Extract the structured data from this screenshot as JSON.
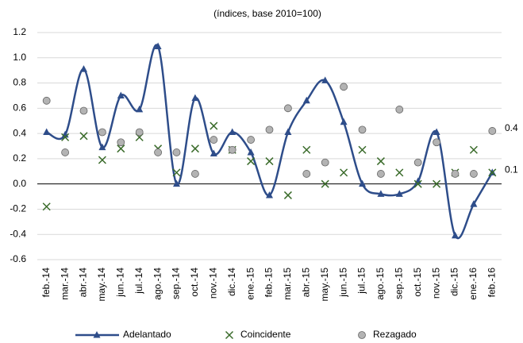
{
  "chart_data": {
    "type": "line",
    "title": "(índices, base 2010=100)",
    "categories": [
      "feb.-14",
      "mar.-14",
      "abr.-14",
      "may.-14",
      "jun.-14",
      "jul.-14",
      "ago.-14",
      "sep.-14",
      "oct.-14",
      "nov.-14",
      "dic.-14",
      "ene.-15",
      "feb.-15",
      "mar.-15",
      "abr.-15",
      "may.-15",
      "jun.-15",
      "jul.-15",
      "ago.-15",
      "sep.-15",
      "oct.-15",
      "nov.-15",
      "dic.-15",
      "ene.-16",
      "feb.-16"
    ],
    "series": [
      {
        "name": "Adelantado",
        "color": "#2e4d8a",
        "marker": "triangle",
        "values": [
          0.41,
          0.39,
          0.91,
          0.29,
          0.7,
          0.59,
          1.09,
          0.0,
          0.68,
          0.24,
          0.41,
          0.25,
          -0.09,
          0.41,
          0.66,
          0.82,
          0.49,
          0.0,
          -0.08,
          -0.08,
          0.02,
          0.41,
          -0.41,
          -0.16,
          0.09
        ]
      },
      {
        "name": "Coincidente",
        "color": "#3a6b2a",
        "marker": "x",
        "values": [
          -0.18,
          0.37,
          0.38,
          0.19,
          0.28,
          0.37,
          0.28,
          0.09,
          0.28,
          0.46,
          0.27,
          0.18,
          0.18,
          -0.09,
          0.27,
          0.0,
          0.09,
          0.27,
          0.18,
          0.09,
          0.0,
          0.0,
          0.09,
          0.27,
          0.09
        ]
      },
      {
        "name": "Rezagado",
        "color": "#b3b3b3",
        "marker": "circle",
        "values": [
          0.66,
          0.25,
          0.58,
          0.41,
          0.33,
          0.41,
          0.25,
          0.25,
          0.08,
          0.35,
          0.27,
          0.35,
          0.43,
          0.6,
          0.08,
          0.17,
          0.77,
          0.43,
          0.08,
          0.59,
          0.17,
          0.33,
          0.08,
          0.08,
          0.42
        ]
      }
    ],
    "annotations": [
      "0.4",
      "0.1"
    ],
    "ylim": [
      -0.6,
      1.2
    ],
    "yticks": [
      -0.6,
      -0.4,
      -0.2,
      {
        "value": 0,
        "label": "0.0"
      },
      0.2,
      0.4,
      0.6,
      0.8,
      {
        "value": 1,
        "label": "1.0"
      },
      1.2
    ],
    "grid": true,
    "smooth": true,
    "legend": "bottom"
  }
}
